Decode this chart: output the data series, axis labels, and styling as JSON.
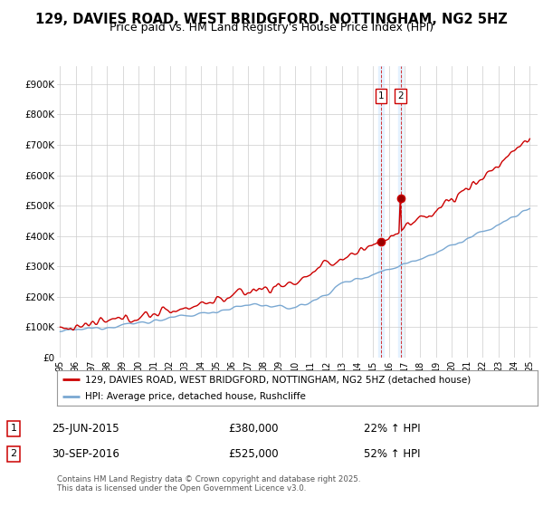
{
  "title": "129, DAVIES ROAD, WEST BRIDGFORD, NOTTINGHAM, NG2 5HZ",
  "subtitle": "Price paid vs. HM Land Registry's House Price Index (HPI)",
  "title_fontsize": 10.5,
  "subtitle_fontsize": 9,
  "ylabel_ticks": [
    "£0",
    "£100K",
    "£200K",
    "£300K",
    "£400K",
    "£500K",
    "£600K",
    "£700K",
    "£800K",
    "£900K"
  ],
  "ytick_values": [
    0,
    100000,
    200000,
    300000,
    400000,
    500000,
    600000,
    700000,
    800000,
    900000
  ],
  "ylim": [
    0,
    960000
  ],
  "red_color": "#cc0000",
  "blue_color": "#7aa8d2",
  "shade_color": "#ddeeff",
  "background_color": "#ffffff",
  "grid_color": "#cccccc",
  "legend_label_red": "129, DAVIES ROAD, WEST BRIDGFORD, NOTTINGHAM, NG2 5HZ (detached house)",
  "legend_label_blue": "HPI: Average price, detached house, Rushcliffe",
  "annotation1_label": "1",
  "annotation1_date": "25-JUN-2015",
  "annotation1_price": "£380,000",
  "annotation1_hpi": "22% ↑ HPI",
  "annotation2_label": "2",
  "annotation2_date": "30-SEP-2016",
  "annotation2_price": "£525,000",
  "annotation2_hpi": "52% ↑ HPI",
  "footer": "Contains HM Land Registry data © Crown copyright and database right 2025.\nThis data is licensed under the Open Government Licence v3.0.",
  "xstart_year": 1995,
  "xend_year": 2025,
  "sale1_year": 2015.5,
  "sale1_value": 380000,
  "sale2_year": 2016.75,
  "sale2_value": 525000
}
